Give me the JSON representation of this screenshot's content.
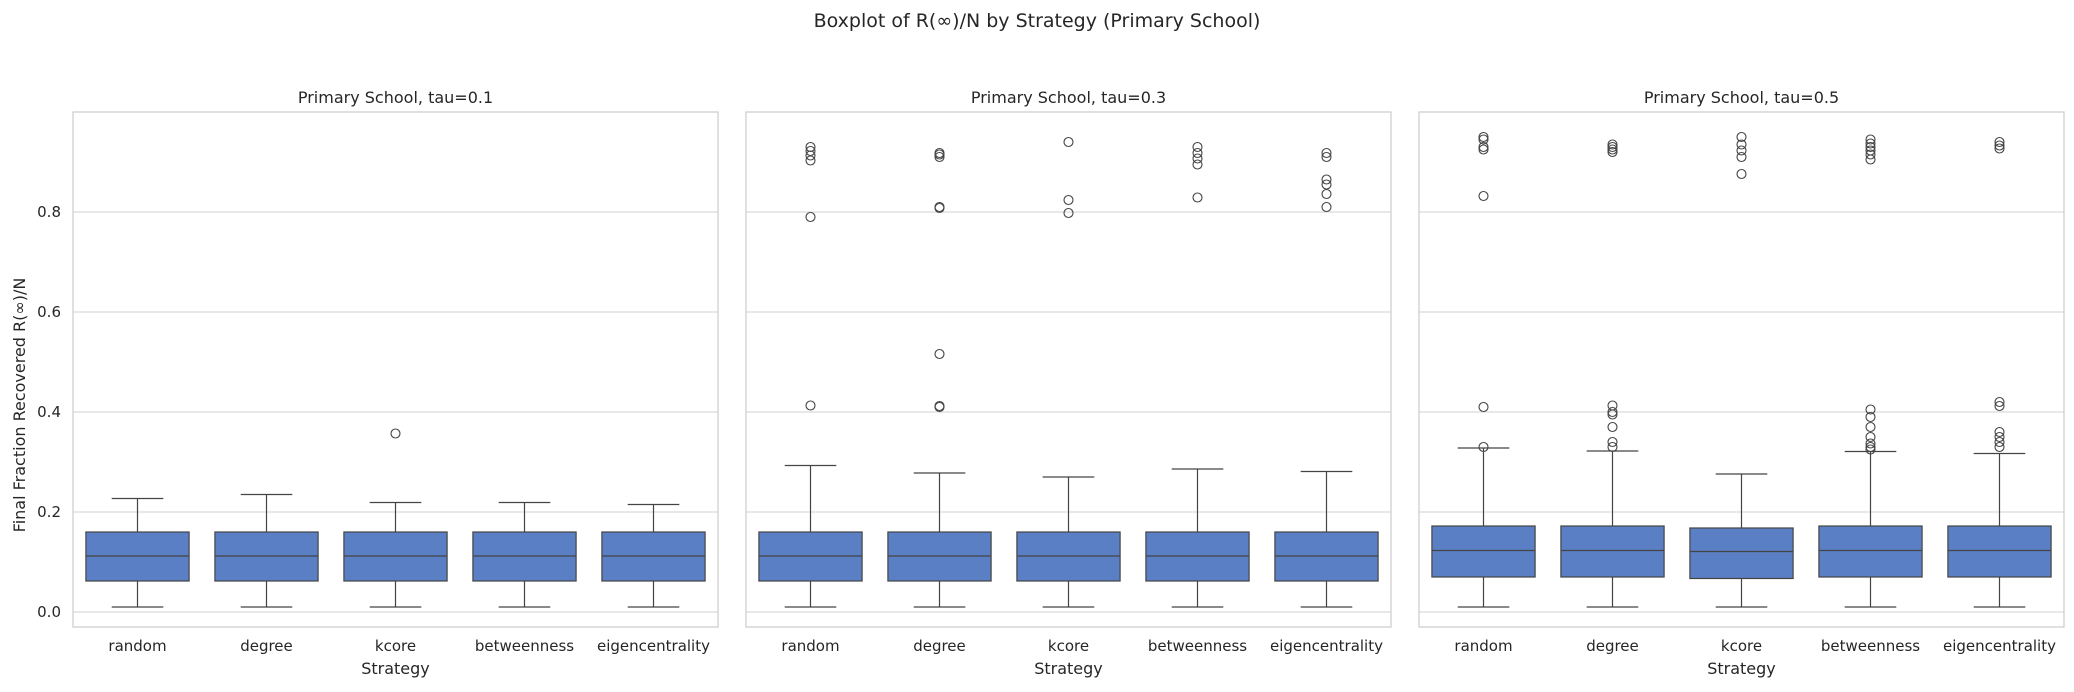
{
  "figure": {
    "suptitle": "Boxplot of R(∞)/N by Strategy (Primary School)",
    "ylabel": "Final Fraction Recovered R(∞)/N",
    "box_color": "#5a7fc4",
    "line_color": "#444444",
    "grid_color": "#d9d9d9",
    "frame_color": "#cccccc"
  },
  "chart_data": [
    {
      "type": "boxplot",
      "title": "Primary School, tau=0.1",
      "xlabel": "Strategy",
      "ylabel": "Final Fraction Recovered R(∞)/N",
      "ylim": [
        -0.03,
        1.0
      ],
      "yticks": [
        0.0,
        0.2,
        0.4,
        0.6,
        0.8
      ],
      "grid": "horizontal",
      "categories": [
        "random",
        "degree",
        "kcore",
        "betweenness",
        "eigencentrality"
      ],
      "boxes": [
        {
          "whisker_low": 0.01,
          "q1": 0.062,
          "median": 0.112,
          "q3": 0.16,
          "whisker_high": 0.227,
          "outliers": []
        },
        {
          "whisker_low": 0.01,
          "q1": 0.062,
          "median": 0.112,
          "q3": 0.16,
          "whisker_high": 0.235,
          "outliers": []
        },
        {
          "whisker_low": 0.01,
          "q1": 0.062,
          "median": 0.112,
          "q3": 0.16,
          "whisker_high": 0.219,
          "outliers": [
            0.357
          ]
        },
        {
          "whisker_low": 0.01,
          "q1": 0.062,
          "median": 0.112,
          "q3": 0.16,
          "whisker_high": 0.219,
          "outliers": []
        },
        {
          "whisker_low": 0.01,
          "q1": 0.062,
          "median": 0.112,
          "q3": 0.16,
          "whisker_high": 0.215,
          "outliers": []
        }
      ]
    },
    {
      "type": "boxplot",
      "title": "Primary School, tau=0.3",
      "xlabel": "Strategy",
      "ylim": [
        -0.03,
        1.0
      ],
      "yticks": [
        0.0,
        0.2,
        0.4,
        0.6,
        0.8
      ],
      "grid": "horizontal",
      "categories": [
        "random",
        "degree",
        "kcore",
        "betweenness",
        "eigencentrality"
      ],
      "boxes": [
        {
          "whisker_low": 0.01,
          "q1": 0.062,
          "median": 0.112,
          "q3": 0.16,
          "whisker_high": 0.293,
          "outliers": [
            0.413,
            0.79,
            0.903,
            0.913,
            0.922,
            0.93
          ]
        },
        {
          "whisker_low": 0.01,
          "q1": 0.062,
          "median": 0.112,
          "q3": 0.16,
          "whisker_high": 0.278,
          "outliers": [
            0.41,
            0.412,
            0.516,
            0.808,
            0.81,
            0.91,
            0.915,
            0.918
          ]
        },
        {
          "whisker_low": 0.01,
          "q1": 0.062,
          "median": 0.112,
          "q3": 0.16,
          "whisker_high": 0.27,
          "outliers": [
            0.798,
            0.824,
            0.94
          ]
        },
        {
          "whisker_low": 0.01,
          "q1": 0.062,
          "median": 0.112,
          "q3": 0.16,
          "whisker_high": 0.286,
          "outliers": [
            0.829,
            0.895,
            0.907,
            0.918,
            0.93
          ]
        },
        {
          "whisker_low": 0.01,
          "q1": 0.062,
          "median": 0.112,
          "q3": 0.16,
          "whisker_high": 0.281,
          "outliers": [
            0.81,
            0.836,
            0.855,
            0.865,
            0.91,
            0.918
          ]
        }
      ]
    },
    {
      "type": "boxplot",
      "title": "Primary School, tau=0.5",
      "xlabel": "Strategy",
      "ylim": [
        -0.03,
        1.0
      ],
      "yticks": [
        0.0,
        0.2,
        0.4,
        0.6,
        0.8
      ],
      "grid": "horizontal",
      "categories": [
        "random",
        "degree",
        "kcore",
        "betweenness",
        "eigencentrality"
      ],
      "boxes": [
        {
          "whisker_low": 0.01,
          "q1": 0.07,
          "median": 0.123,
          "q3": 0.172,
          "whisker_high": 0.328,
          "outliers": [
            0.33,
            0.41,
            0.832,
            0.925,
            0.93,
            0.945,
            0.95
          ]
        },
        {
          "whisker_low": 0.01,
          "q1": 0.07,
          "median": 0.123,
          "q3": 0.172,
          "whisker_high": 0.322,
          "outliers": [
            0.33,
            0.34,
            0.37,
            0.395,
            0.4,
            0.413,
            0.92,
            0.925,
            0.93,
            0.935
          ]
        },
        {
          "whisker_low": 0.01,
          "q1": 0.067,
          "median": 0.121,
          "q3": 0.168,
          "whisker_high": 0.276,
          "outliers": [
            0.876,
            0.91,
            0.923,
            0.935,
            0.95
          ]
        },
        {
          "whisker_low": 0.01,
          "q1": 0.07,
          "median": 0.123,
          "q3": 0.172,
          "whisker_high": 0.321,
          "outliers": [
            0.325,
            0.33,
            0.337,
            0.35,
            0.37,
            0.39,
            0.405,
            0.905,
            0.915,
            0.923,
            0.93,
            0.937,
            0.945
          ]
        },
        {
          "whisker_low": 0.01,
          "q1": 0.07,
          "median": 0.123,
          "q3": 0.172,
          "whisker_high": 0.317,
          "outliers": [
            0.33,
            0.34,
            0.35,
            0.36,
            0.412,
            0.42,
            0.927,
            0.933,
            0.94
          ]
        }
      ]
    }
  ]
}
